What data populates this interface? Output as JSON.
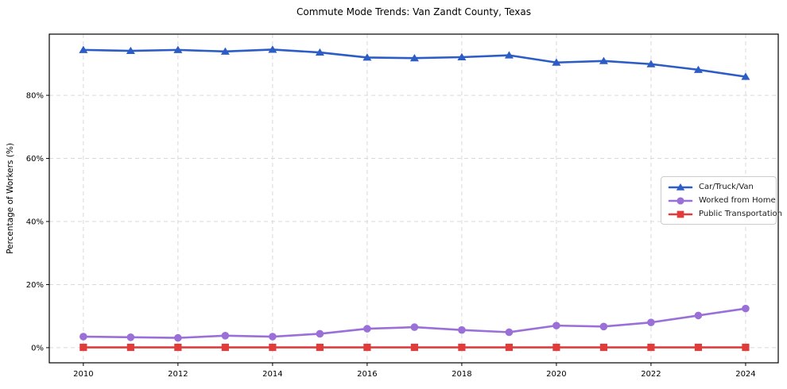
{
  "chart_data": {
    "type": "line",
    "title": "Commute Mode Trends: Van Zandt County, Texas",
    "xlabel": "",
    "ylabel": "Percentage of Workers (%)",
    "x": [
      2010,
      2011,
      2012,
      2013,
      2014,
      2015,
      2016,
      2017,
      2018,
      2019,
      2020,
      2021,
      2022,
      2023,
      2024
    ],
    "x_ticks": [
      2010,
      2012,
      2014,
      2016,
      2018,
      2020,
      2022,
      2024
    ],
    "y_ticks": [
      0,
      20,
      40,
      60,
      80
    ],
    "y_tick_suffix": "%",
    "xlim": [
      2009.28,
      2024.69
    ],
    "ylim": [
      -4.8,
      99.4
    ],
    "grid": "dashed-both",
    "legend_position": "center-right",
    "series": [
      {
        "name": "Car/Truck/Van",
        "color": "#2c5cc5",
        "marker": "triangle",
        "values": [
          94.4,
          94.1,
          94.4,
          93.9,
          94.5,
          93.6,
          92.0,
          91.8,
          92.1,
          92.7,
          90.4,
          90.9,
          89.9,
          88.1,
          85.9
        ]
      },
      {
        "name": "Worked from Home",
        "color": "#9a70d8",
        "marker": "circle",
        "values": [
          3.5,
          3.3,
          3.1,
          3.8,
          3.5,
          4.4,
          6.0,
          6.5,
          5.6,
          4.9,
          7.0,
          6.7,
          8.0,
          10.2,
          12.4
        ]
      },
      {
        "name": "Public Transportation",
        "color": "#e03c3c",
        "marker": "square",
        "values": [
          0.1,
          0.1,
          0.1,
          0.1,
          0.1,
          0.1,
          0.1,
          0.1,
          0.1,
          0.1,
          0.1,
          0.1,
          0.1,
          0.1,
          0.1
        ]
      }
    ]
  }
}
